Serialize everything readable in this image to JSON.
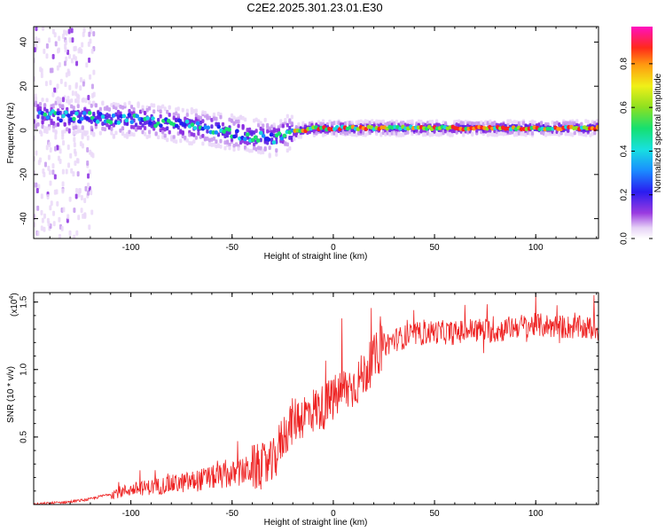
{
  "title": "C2E2.2025.301.23.01.E30",
  "chart_data": [
    {
      "type": "heatmap",
      "xlabel": "Height of straight line (km)",
      "ylabel": "Frequency (Hz)",
      "xlim": [
        -148,
        131
      ],
      "ylim": [
        -49,
        47
      ],
      "xticks": [
        -100,
        -50,
        0,
        50,
        100
      ],
      "yticks": [
        -40,
        -20,
        0,
        20,
        40
      ],
      "ridge": {
        "x": [
          -148,
          -140,
          -130,
          -120,
          -110,
          -100,
          -90,
          -80,
          -70,
          -60,
          -50,
          -45,
          -40,
          -35,
          -30,
          -25,
          -20,
          -15,
          -10,
          0,
          20,
          40,
          60,
          80,
          100,
          131
        ],
        "freq": [
          7,
          7,
          6,
          6,
          5,
          5,
          4,
          3,
          2,
          1,
          -1,
          -2,
          -3,
          -3,
          -4,
          -2,
          -1,
          0,
          1,
          1,
          1,
          1,
          1,
          1,
          1,
          1
        ]
      },
      "colorbar": {
        "label": "Normalized spectral amplitude",
        "range": [
          0,
          0.97
        ],
        "ticks": [
          0.0,
          0.2,
          0.4,
          0.6,
          0.8
        ]
      }
    },
    {
      "type": "line",
      "xlabel": "Height of straight line (km)",
      "ylabel": "SNR (10 * v/v)",
      "scale_label": "(x10",
      "scale_exp": "4",
      "scale_close": ")",
      "xlim": [
        -148,
        131
      ],
      "ylim": [
        0,
        1.57
      ],
      "xticks": [
        -100,
        -50,
        0,
        50,
        100
      ],
      "yticks": [
        0.5,
        1.0,
        1.5
      ],
      "series": [
        {
          "name": "SNR",
          "color": "#ee2222",
          "x": [
            -148,
            -140,
            -130,
            -120,
            -110,
            -100,
            -90,
            -80,
            -70,
            -60,
            -50,
            -45,
            -40,
            -35,
            -30,
            -25,
            -20,
            -15,
            -10,
            -5,
            0,
            5,
            10,
            15,
            20,
            25,
            30,
            40,
            50,
            60,
            70,
            80,
            90,
            100,
            110,
            120,
            131
          ],
          "values": [
            0.0,
            0.01,
            0.02,
            0.04,
            0.08,
            0.11,
            0.13,
            0.15,
            0.17,
            0.2,
            0.22,
            0.24,
            0.27,
            0.28,
            0.3,
            0.5,
            0.62,
            0.66,
            0.7,
            0.72,
            0.78,
            0.85,
            0.88,
            0.96,
            1.08,
            1.18,
            1.22,
            1.26,
            1.28,
            1.27,
            1.3,
            1.28,
            1.32,
            1.33,
            1.32,
            1.31,
            1.3
          ]
        }
      ]
    }
  ]
}
